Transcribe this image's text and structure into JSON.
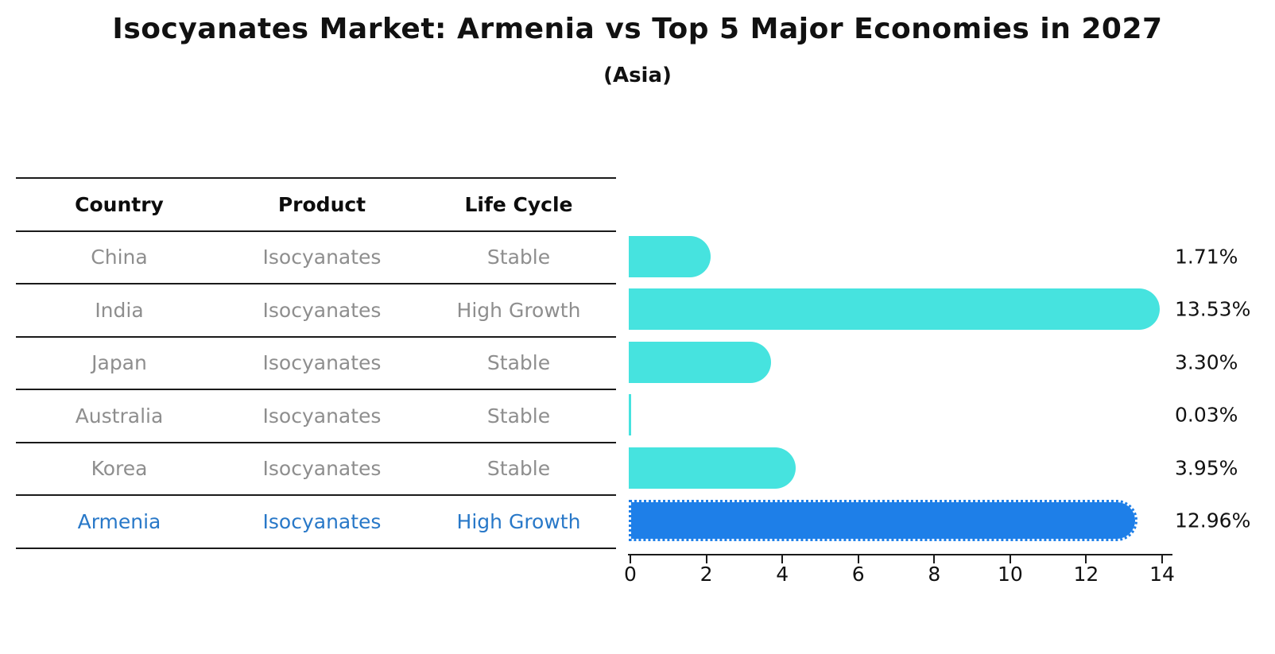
{
  "title": "Isocyanates Market: Armenia vs Top 5 Major Economies in 2027",
  "subtitle": "(Asia)",
  "table": {
    "headers": [
      "Country",
      "Product",
      "Life Cycle"
    ],
    "rows": [
      {
        "country": "China",
        "product": "Isocyanates",
        "life_cycle": "Stable",
        "highlight": false
      },
      {
        "country": "India",
        "product": "Isocyanates",
        "life_cycle": "High Growth",
        "highlight": false
      },
      {
        "country": "Japan",
        "product": "Isocyanates",
        "life_cycle": "Stable",
        "highlight": false
      },
      {
        "country": "Australia",
        "product": "Isocyanates",
        "life_cycle": "Stable",
        "highlight": false
      },
      {
        "country": "Korea",
        "product": "Isocyanates",
        "life_cycle": "Stable",
        "highlight": false
      },
      {
        "country": "Armenia",
        "product": "Isocyanates",
        "life_cycle": "High Growth",
        "highlight": true
      }
    ]
  },
  "chart_data": {
    "type": "bar",
    "orientation": "horizontal",
    "title": "Isocyanates Market: Armenia vs Top 5 Major Economies in 2027",
    "subtitle": "(Asia)",
    "categories": [
      "China",
      "India",
      "Japan",
      "Australia",
      "Korea",
      "Armenia"
    ],
    "values": [
      1.71,
      13.53,
      3.3,
      0.03,
      3.95,
      12.96
    ],
    "value_labels": [
      "1.71%",
      "13.53%",
      "3.30%",
      "0.03%",
      "3.95%",
      "12.96%"
    ],
    "xlabel": "",
    "ylabel": "",
    "xlim": [
      0,
      14
    ],
    "x_ticks": [
      0,
      2,
      4,
      6,
      8,
      10,
      12,
      14
    ],
    "grid": false,
    "legend": "none",
    "highlight_index": 5,
    "colors": {
      "default_bar": "#46e3df",
      "highlight_bar": "#1e7fe8",
      "highlight_text": "#2878c8",
      "table_text": "#8e8e8e",
      "header_text": "#0d0d0d",
      "axis": "#1a1a1a"
    }
  }
}
